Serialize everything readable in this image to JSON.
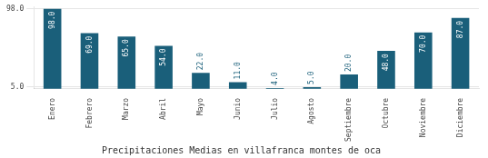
{
  "chart_data": {
    "type": "bar",
    "title": "Precipitaciones Medias en villafranca montes de oca",
    "categories": [
      "Enero",
      "Febrero",
      "Marzo",
      "Abril",
      "Mayo",
      "Junio",
      "Julio",
      "Agosto",
      "Septiembre",
      "Octubre",
      "Noviembre",
      "Diciembre"
    ],
    "values": [
      98.0,
      69.0,
      65.0,
      54.0,
      22.0,
      11.0,
      4.0,
      5.0,
      20.0,
      48.0,
      70.0,
      87.0
    ],
    "value_labels": [
      "98.0",
      "69.0",
      "65.0",
      "54.0",
      "22.0",
      "11.0",
      "4.0",
      "5.0",
      "20.0",
      "48.0",
      "70.0",
      "87.0"
    ],
    "data_labels": true,
    "color": "#1a5f7a",
    "ylim": [
      3.0,
      100.0
    ],
    "yticks": [
      {
        "value": 5.0,
        "label": "5.0"
      },
      {
        "value": 98.0,
        "label": "98.0"
      }
    ],
    "grid": true
  }
}
